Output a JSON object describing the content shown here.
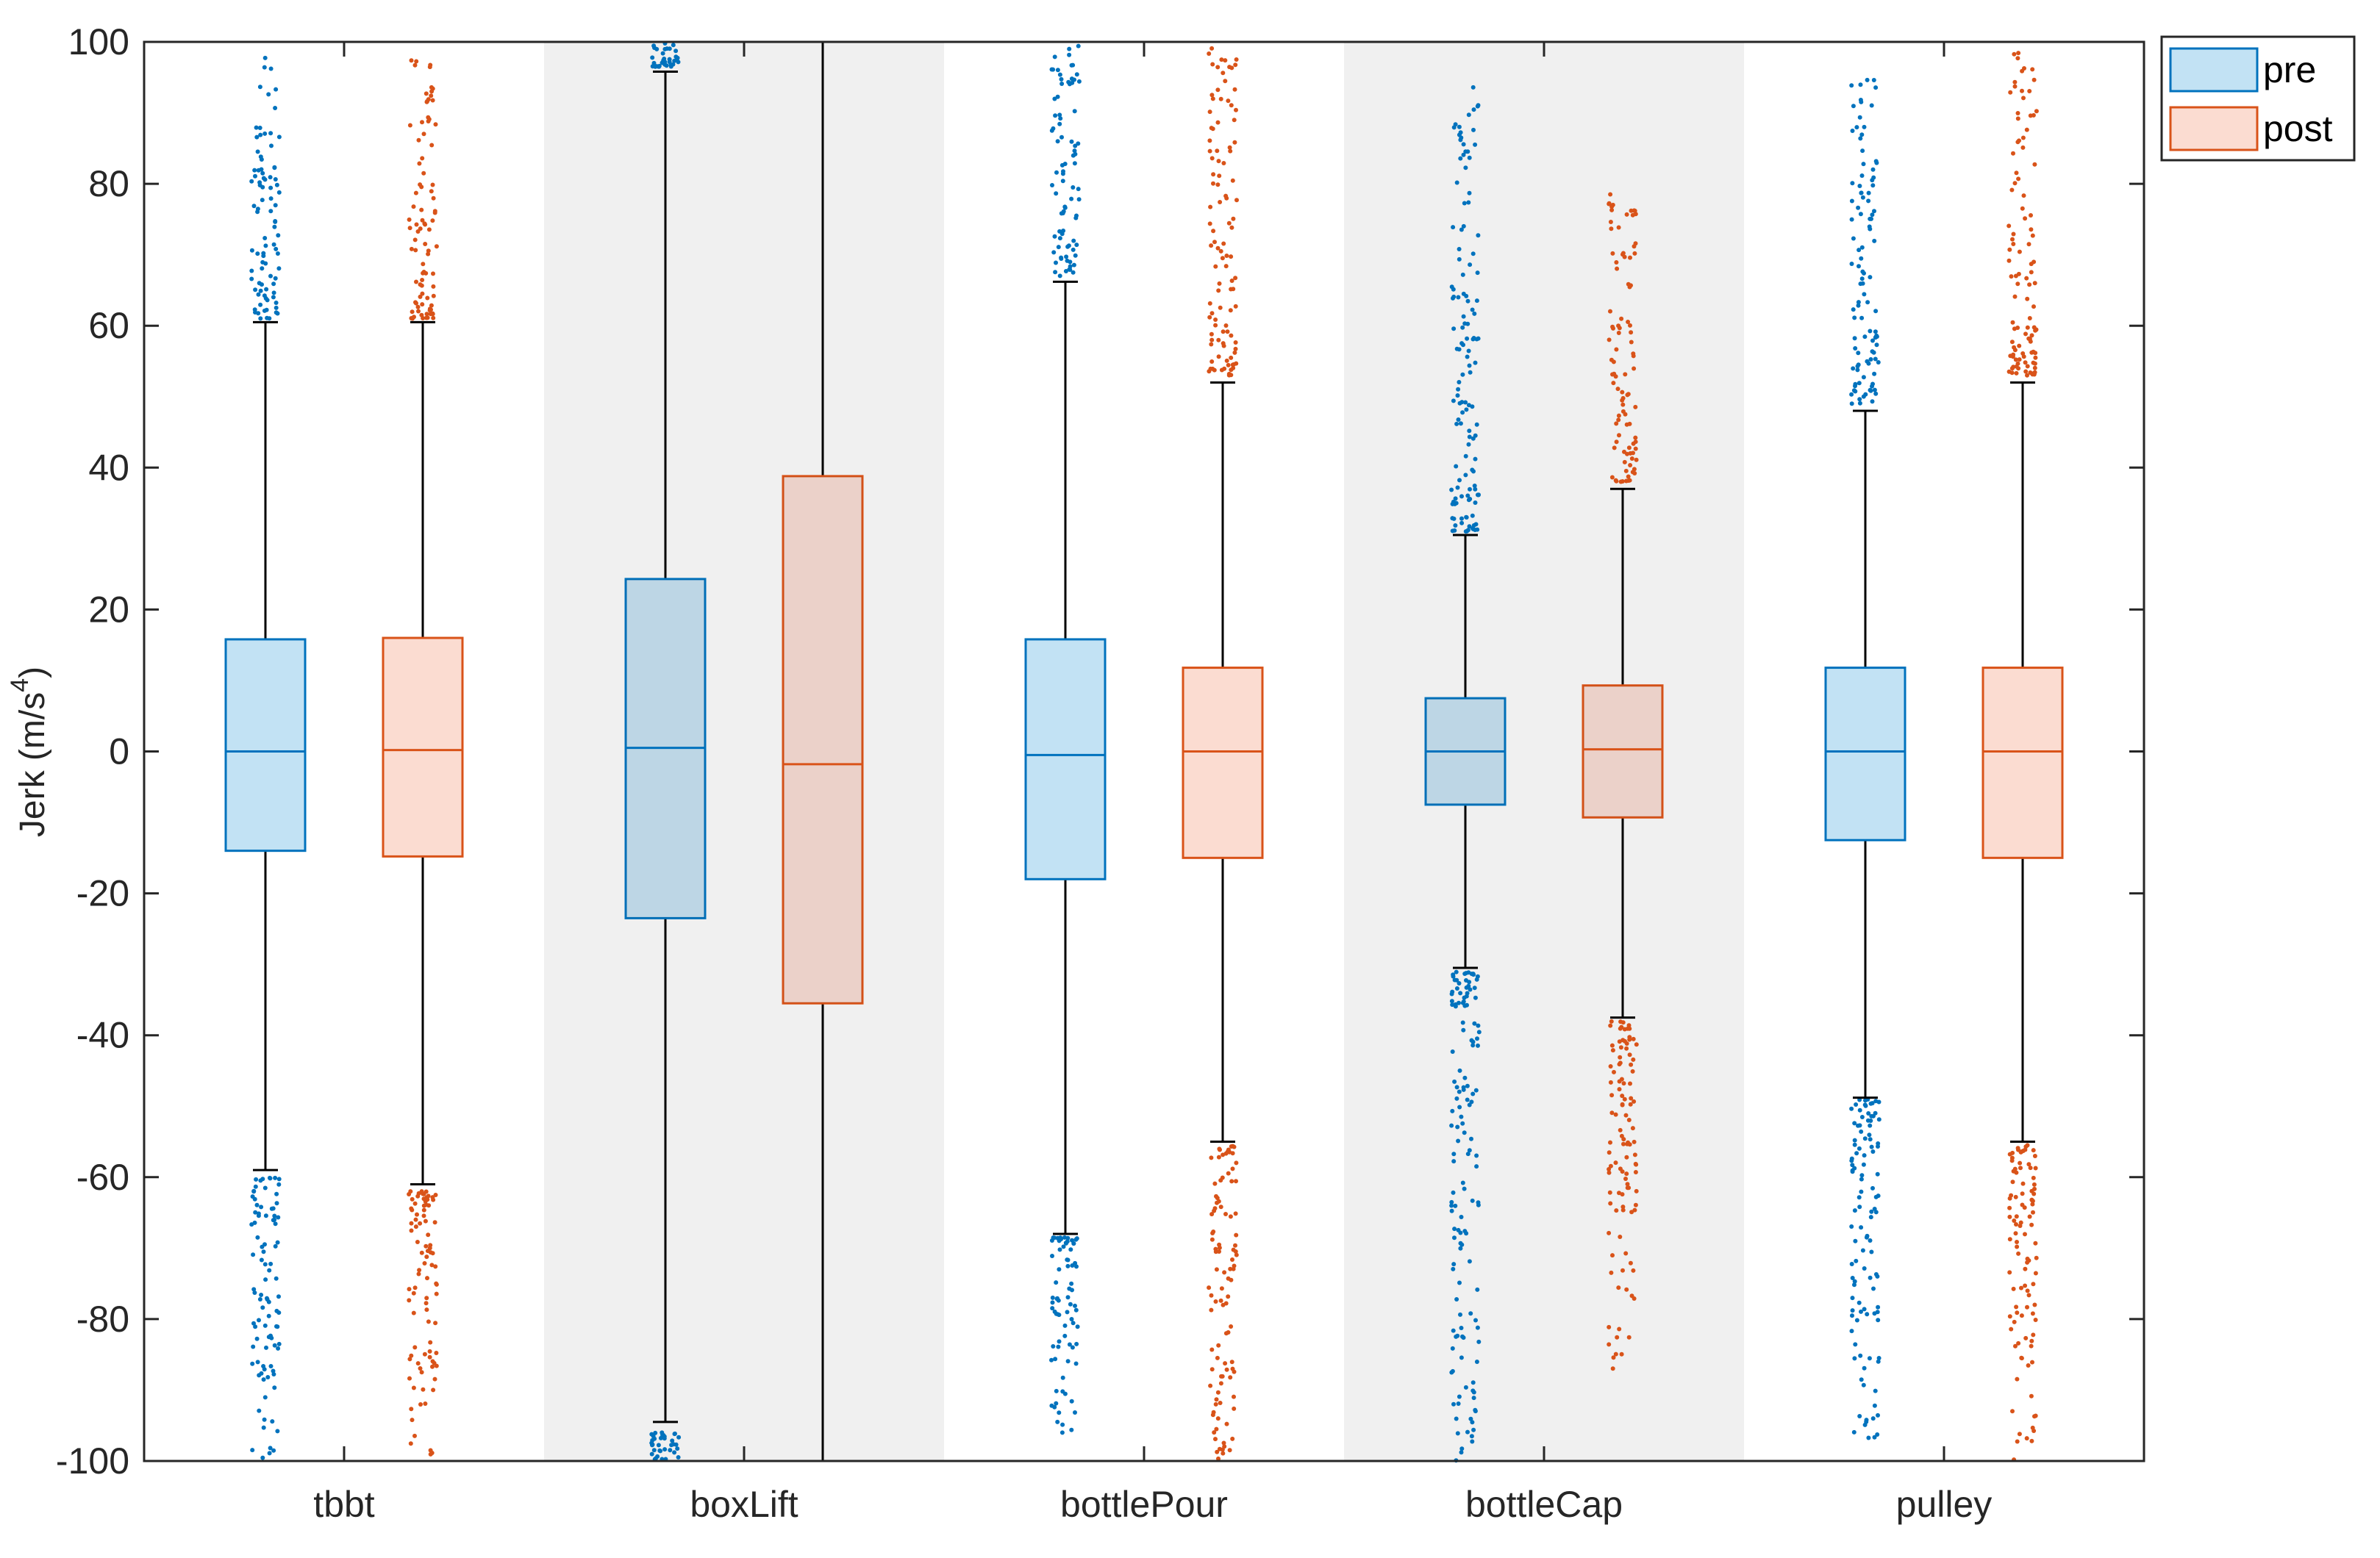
{
  "chart_data": {
    "type": "box",
    "title": "",
    "xlabel": "",
    "ylabel": "Jerk (m/s",
    "ylabel_superscript": "4",
    "ylabel_suffix": ")",
    "ylim": [
      -100,
      100
    ],
    "yticks": [
      100,
      80,
      60,
      40,
      20,
      0,
      -20,
      -40,
      -60,
      -80,
      -100
    ],
    "categories": [
      "tbbt",
      "boxLift",
      "bottlePour",
      "bottleCap",
      "pulley"
    ],
    "shaded_categories": [
      "boxLift",
      "bottleCap"
    ],
    "legend": {
      "location": "top-right",
      "entries": [
        "pre",
        "post"
      ]
    },
    "colors": {
      "pre_edge": "#0072BD",
      "pre_fill": "#C2E2F4",
      "post_edge": "#D95319",
      "post_fill": "#FBDCD1",
      "shade": "#F0F0F0",
      "whisker": "#000000"
    },
    "series": [
      {
        "name": "pre",
        "boxes": [
          {
            "category": "tbbt",
            "q1": -14,
            "median": 0,
            "q3": 15.8,
            "whisker_low": -59,
            "whisker_high": 60.5,
            "outliers_low": [
              -60,
              -100
            ],
            "outliers_high": [
              61,
              98
            ]
          },
          {
            "category": "boxLift",
            "q1": -23.5,
            "median": 0.5,
            "q3": 24.3,
            "whisker_low": -94.5,
            "whisker_high": 95.8,
            "outliers_low": [
              -96,
              -100
            ],
            "outliers_high": [
              96.5,
              100
            ]
          },
          {
            "category": "bottlePour",
            "q1": -18,
            "median": -0.5,
            "q3": 15.8,
            "whisker_low": -68,
            "whisker_high": 66.2,
            "outliers_low": [
              -68.5,
              -97
            ],
            "outliers_high": [
              67,
              100
            ]
          },
          {
            "category": "bottleCap",
            "q1": -7.5,
            "median": 0,
            "q3": 7.5,
            "whisker_low": -30.5,
            "whisker_high": 30.5,
            "outliers_low": [
              -31,
              -100
            ],
            "outliers_high": [
              31,
              94
            ]
          },
          {
            "category": "pulley",
            "q1": -12.5,
            "median": 0,
            "q3": 11.8,
            "whisker_low": -48.8,
            "whisker_high": 48,
            "outliers_low": [
              -49,
              -99
            ],
            "outliers_high": [
              49,
              95
            ]
          }
        ]
      },
      {
        "name": "post",
        "boxes": [
          {
            "category": "tbbt",
            "q1": -14.8,
            "median": 0.2,
            "q3": 16,
            "whisker_low": -61,
            "whisker_high": 60.5,
            "outliers_low": [
              -62,
              -100
            ],
            "outliers_high": [
              61,
              98
            ]
          },
          {
            "category": "boxLift",
            "q1": -35.5,
            "median": -1.8,
            "q3": 38.8,
            "whisker_low": -100,
            "whisker_high": 100,
            "outliers_low": [],
            "outliers_high": []
          },
          {
            "category": "bottlePour",
            "q1": -15,
            "median": 0,
            "q3": 11.8,
            "whisker_low": -55,
            "whisker_high": 52,
            "outliers_low": [
              -55.5,
              -100
            ],
            "outliers_high": [
              53,
              100
            ]
          },
          {
            "category": "bottleCap",
            "q1": -9.3,
            "median": 0.3,
            "q3": 9.3,
            "whisker_low": -37.5,
            "whisker_high": 37,
            "outliers_low": [
              -38,
              -87
            ],
            "outliers_high": [
              38,
              79
            ]
          },
          {
            "category": "pulley",
            "q1": -15,
            "median": 0,
            "q3": 11.8,
            "whisker_low": -55,
            "whisker_high": 52,
            "outliers_low": [
              -55.5,
              -100
            ],
            "outliers_high": [
              53,
              100
            ]
          }
        ]
      }
    ]
  }
}
